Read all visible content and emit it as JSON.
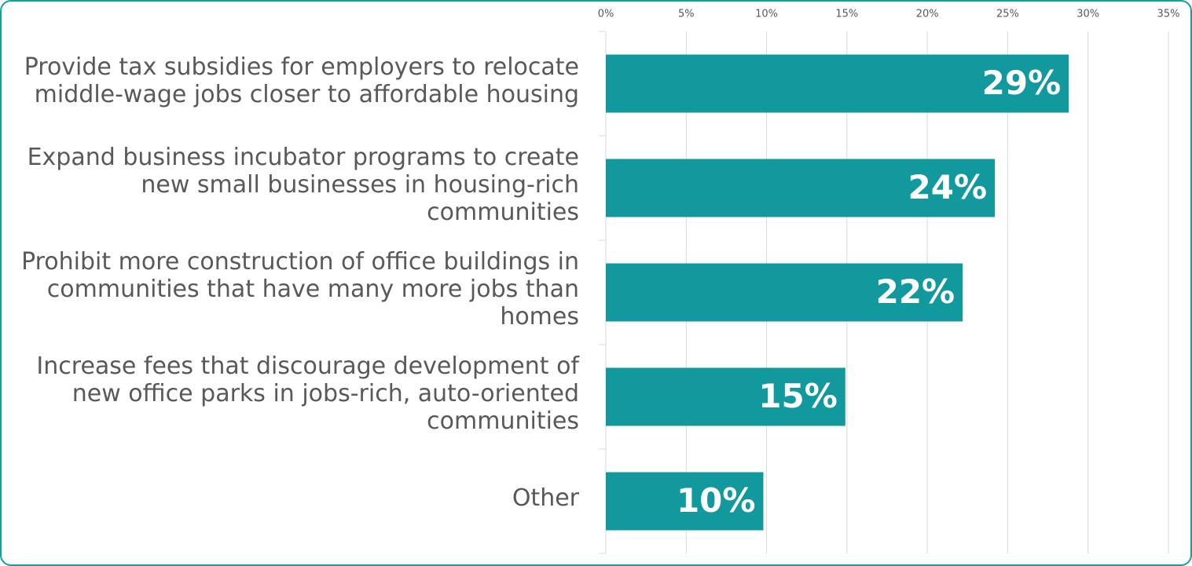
{
  "chart_data": {
    "type": "bar",
    "orientation": "horizontal",
    "categories": [
      "Provide tax subsidies for employers to relocate middle-wage jobs closer to affordable housing",
      "Expand business incubator programs to create new small businesses in housing-rich communities",
      "Prohibit more construction of office buildings in communities that have many more jobs than homes",
      "Increase fees that discourage development of new office parks in jobs-rich, auto-oriented communities",
      "Other"
    ],
    "values": [
      28.8,
      24.2,
      22.2,
      14.9,
      9.8
    ],
    "value_labels": [
      "29%",
      "24%",
      "22%",
      "15%",
      "10%"
    ],
    "color": "#11999e",
    "xlim": [
      0,
      35
    ],
    "xticks": [
      {
        "value": 0,
        "label": "0%"
      },
      {
        "value": 5,
        "label": "5%"
      },
      {
        "value": 10,
        "label": "10%"
      },
      {
        "value": 15,
        "label": "15%"
      },
      {
        "value": 20,
        "label": "20%"
      },
      {
        "value": 25,
        "label": "25%"
      },
      {
        "value": 30,
        "label": "30%"
      },
      {
        "value": 35,
        "label": "35%"
      }
    ],
    "grid": true
  }
}
